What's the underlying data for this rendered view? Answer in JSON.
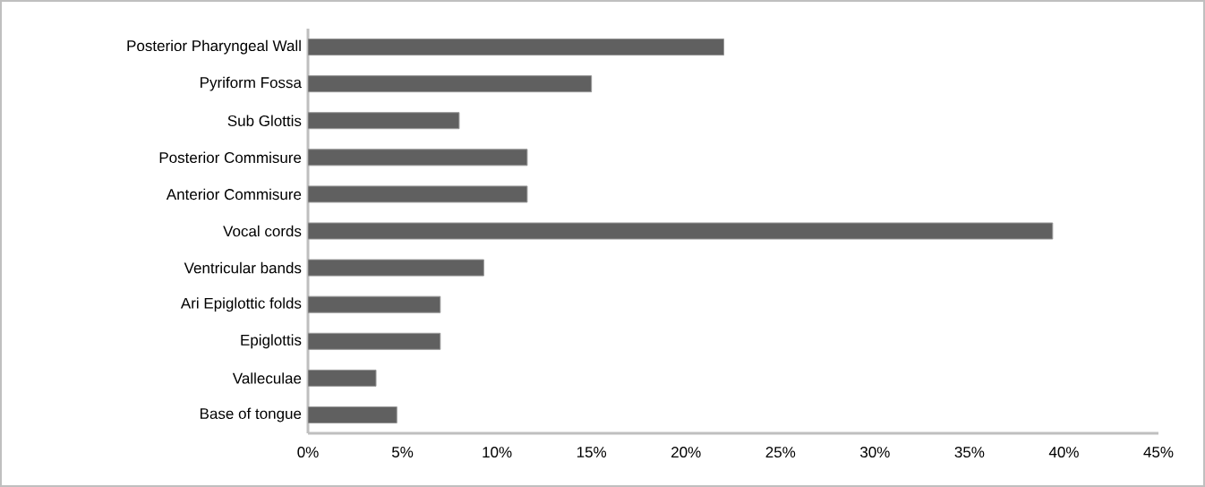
{
  "chart_data": {
    "type": "bar",
    "orientation": "horizontal",
    "categories": [
      "Posterior Pharyngeal Wall",
      "Pyriform Fossa",
      "Sub Glottis",
      "Posterior Commisure",
      "Anterior Commisure",
      "Vocal cords",
      "Ventricular bands",
      "Ari Epiglottic folds",
      "Epiglottis",
      "Valleculae",
      "Base of tongue"
    ],
    "values": [
      22.0,
      15.0,
      8.0,
      11.6,
      11.6,
      39.4,
      9.3,
      7.0,
      7.0,
      3.6,
      4.7
    ],
    "color": "#606060",
    "xlim": [
      0,
      45
    ],
    "xticks": [
      {
        "value": 0,
        "label": "0%"
      },
      {
        "value": 5,
        "label": "5%"
      },
      {
        "value": 10,
        "label": "10%"
      },
      {
        "value": 15,
        "label": "15%"
      },
      {
        "value": 20,
        "label": "20%"
      },
      {
        "value": 25,
        "label": "25%"
      },
      {
        "value": 30,
        "label": "30%"
      },
      {
        "value": 35,
        "label": "35%"
      },
      {
        "value": 40,
        "label": "40%"
      },
      {
        "value": 45,
        "label": "45%"
      }
    ],
    "grid": false
  }
}
